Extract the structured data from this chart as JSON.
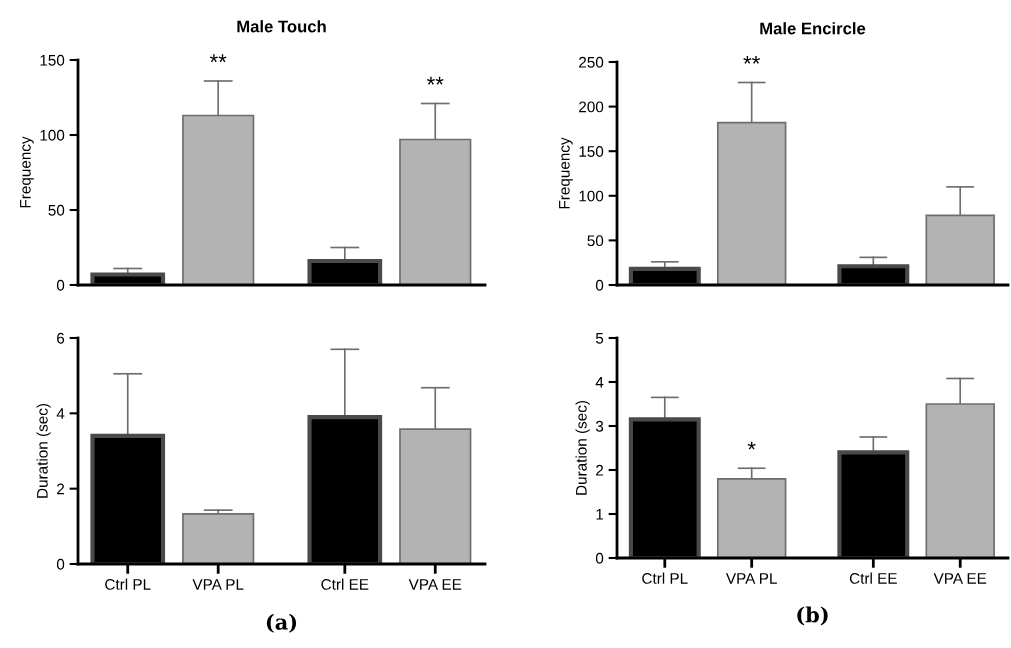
{
  "chart_data": [
    {
      "type": "bar",
      "title": "Male Touch",
      "ylabel": "Frequency",
      "categories": [
        "Ctrl PL",
        "VPA PL",
        "Ctrl EE",
        "VPA EE"
      ],
      "values": [
        7,
        113,
        16,
        97
      ],
      "errors": [
        [
          7,
          11
        ],
        [
          113,
          136
        ],
        [
          16,
          25
        ],
        [
          97,
          121
        ]
      ],
      "colors": [
        "#000000",
        "#b3b3b3",
        "#000000",
        "#b3b3b3"
      ],
      "ylim": [
        0,
        150
      ],
      "yticks": [
        0,
        50,
        100,
        150
      ],
      "tick_labels": "y",
      "annotations": [
        {
          "text": "**",
          "x": "VPA PL",
          "y": 113
        },
        {
          "text": "**",
          "x": "VPA EE",
          "y": 97
        }
      ]
    },
    {
      "type": "bar",
      "title": "Male Encircle",
      "ylabel": "Frequency",
      "categories": [
        "Ctrl PL",
        "VPA PL",
        "Ctrl EE",
        "VPA EE"
      ],
      "values": [
        18,
        182,
        21,
        78
      ],
      "errors": [
        [
          18,
          26
        ],
        [
          182,
          227
        ],
        [
          21,
          31
        ],
        [
          78,
          110
        ]
      ],
      "colors": [
        "#000000",
        "#b3b3b3",
        "#000000",
        "#b3b3b3"
      ],
      "ylim": [
        0,
        250
      ],
      "yticks": [
        0,
        50,
        100,
        150,
        200,
        250
      ],
      "tick_labels": "y",
      "annotations": [
        {
          "text": "**",
          "x": "VPA PL",
          "y": 182
        }
      ]
    },
    {
      "type": "bar",
      "ylabel": "Duration (sec)",
      "categories": [
        "Ctrl PL",
        "VPA PL",
        "Ctrl EE",
        "VPA EE"
      ],
      "values": [
        3.4,
        1.33,
        3.9,
        3.58
      ],
      "errors": [
        [
          3.4,
          5.05
        ],
        [
          1.33,
          1.43
        ],
        [
          3.9,
          5.7
        ],
        [
          3.58,
          4.68
        ]
      ],
      "colors": [
        "#000000",
        "#b3b3b3",
        "#000000",
        "#b3b3b3"
      ],
      "ylim": [
        0,
        6
      ],
      "yticks": [
        0,
        2,
        4,
        6
      ],
      "annotations": [
        "(a)"
      ]
    },
    {
      "type": "bar",
      "ylabel": "Duration (sec)",
      "categories": [
        "Ctrl PL",
        "VPA PL",
        "Ctrl EE",
        "VPA EE"
      ],
      "values": [
        3.15,
        1.8,
        2.4,
        3.5
      ],
      "errors": [
        [
          3.15,
          3.65
        ],
        [
          1.8,
          2.04
        ],
        [
          2.4,
          2.75
        ],
        [
          3.5,
          4.08
        ]
      ],
      "colors": [
        "#000000",
        "#b3b3b3",
        "#000000",
        "#b3b3b3"
      ],
      "ylim": [
        0,
        5
      ],
      "yticks": [
        0,
        1,
        2,
        3,
        4,
        5
      ],
      "annotations": [
        {
          "text": "*",
          "x": "VPA PL",
          "y": 1.8
        },
        "(b)"
      ]
    }
  ]
}
